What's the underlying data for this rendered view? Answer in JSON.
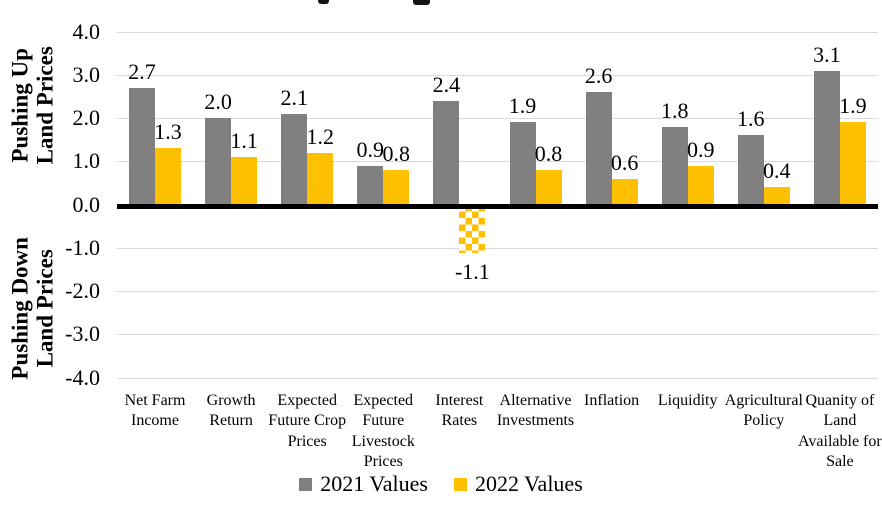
{
  "chart_data": {
    "type": "bar",
    "categories": [
      "Net Farm Income",
      "Growth Return",
      "Expected Future Crop Prices",
      "Expected Future Livestock Prices",
      "Interest Rates",
      "Alternative Investments",
      "Inflation",
      "Liquidity",
      "Agricultural Policy",
      "Quanity of Land Available for Sale"
    ],
    "series": [
      {
        "name": "2021 Values",
        "color": "#808080",
        "values": [
          2.7,
          2.0,
          2.1,
          0.9,
          2.4,
          1.9,
          2.6,
          1.8,
          1.6,
          3.1
        ],
        "labels": [
          "2.7",
          "2.0",
          "2.1",
          "0.9",
          "2.4",
          "1.9",
          "2.6",
          "1.8",
          "1.6",
          "3.1"
        ]
      },
      {
        "name": "2022 Values",
        "color": "#FFC000",
        "values": [
          1.3,
          1.1,
          1.2,
          0.8,
          -1.1,
          0.8,
          0.6,
          0.9,
          0.4,
          1.9
        ],
        "labels": [
          "1.3",
          "1.1",
          "1.2",
          "0.8",
          "-1.1",
          "0.8",
          "0.6",
          "0.9",
          "0.4",
          "1.9"
        ]
      }
    ],
    "y_ticks": [
      {
        "label": "4.0",
        "value": 4
      },
      {
        "label": "3.0",
        "value": 3
      },
      {
        "label": "2.0",
        "value": 2
      },
      {
        "label": "1.0",
        "value": 1
      },
      {
        "label": "0.0",
        "value": 0
      },
      {
        "label": "-1.0",
        "value": -1
      },
      {
        "label": "-2.0",
        "value": -2
      },
      {
        "label": "-3.0",
        "value": -3
      },
      {
        "label": "-4.0",
        "value": -4
      }
    ],
    "ylim": [
      -4.0,
      4.0
    ],
    "grid": "horizontal",
    "gridline_color": "#D9D9D9",
    "zero_axis_color": "#000000",
    "negative_bar_style": "checkerboard",
    "legend_position": "bottom",
    "y_axis_title_upper_line1": "Pushing Up",
    "y_axis_title_upper_line2": "Land Prices",
    "y_axis_title_lower_line1": "Pushing Down",
    "y_axis_title_lower_line2": "Land Prices"
  }
}
